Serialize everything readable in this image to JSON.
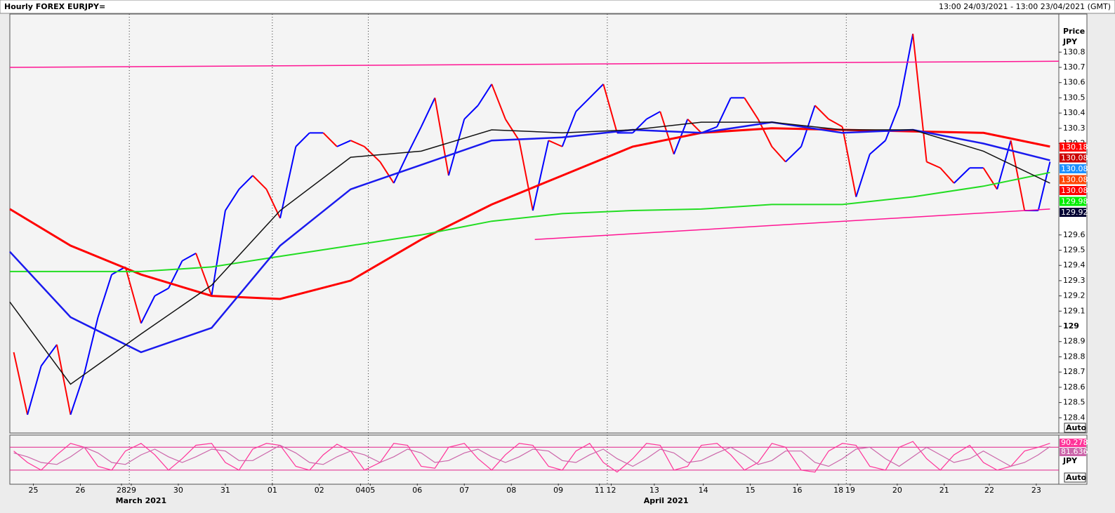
{
  "chart_data": [
    {
      "type": "line",
      "title": "Hourly FOREX EURJPY=",
      "subtitle": "13:00 24/03/2021 - 13:00 23/04/2021 (GMT)",
      "y_axis_label": "Price",
      "y_unit": "JPY",
      "y_scale_label": "Auto",
      "xlim": [
        0,
        535.5
      ],
      "ylim": [
        128.3,
        131.05
      ],
      "yticks": [
        128.4,
        128.5,
        128.6,
        128.7,
        128.8,
        128.9,
        129,
        129.1,
        129.2,
        129.3,
        129.4,
        129.5,
        129.6,
        130.2,
        130.3,
        130.4,
        130.5,
        130.6,
        130.7,
        130.8
      ],
      "xticks": [
        {
          "value": 12,
          "label": "25"
        },
        {
          "value": 36,
          "label": "26"
        },
        {
          "value": 57,
          "label": "28"
        },
        {
          "value": 62,
          "label": "29"
        },
        {
          "value": 86,
          "label": "30"
        },
        {
          "value": 110,
          "label": "31"
        },
        {
          "value": 134,
          "label": "01"
        },
        {
          "value": 158,
          "label": "02"
        },
        {
          "value": 179,
          "label": "04"
        },
        {
          "value": 184,
          "label": "05"
        },
        {
          "value": 208,
          "label": "06"
        },
        {
          "value": 232,
          "label": "07"
        },
        {
          "value": 256,
          "label": "08"
        },
        {
          "value": 280,
          "label": "09"
        },
        {
          "value": 301,
          "label": "11"
        },
        {
          "value": 307,
          "label": "12"
        },
        {
          "value": 329,
          "label": "13"
        },
        {
          "value": 354,
          "label": "14"
        },
        {
          "value": 378,
          "label": "15"
        },
        {
          "value": 402,
          "label": "16"
        },
        {
          "value": 423,
          "label": "18"
        },
        {
          "value": 429,
          "label": "19"
        },
        {
          "value": 453,
          "label": "20"
        },
        {
          "value": 477,
          "label": "21"
        },
        {
          "value": 500,
          "label": "22"
        },
        {
          "value": 524,
          "label": "23"
        }
      ],
      "month_labels": [
        {
          "value": 67,
          "label": "March 2021"
        },
        {
          "value": 335,
          "label": "April 2021"
        }
      ],
      "week_lines": [
        61,
        134,
        183,
        305,
        427
      ],
      "series": [
        {
          "up_color": "#0000ff",
          "down_color": "#ff0000",
          "x": [
            2,
            9,
            16,
            24,
            31,
            38,
            45,
            52,
            59,
            67,
            74,
            81,
            88,
            95,
            103,
            110,
            117,
            124,
            131,
            138,
            146,
            153,
            160,
            167,
            174,
            181,
            189,
            196,
            203,
            210,
            217,
            224,
            232,
            239,
            246,
            253,
            260,
            267,
            275,
            282,
            289,
            296,
            303,
            310,
            318,
            325,
            332,
            339,
            346,
            353,
            361,
            368,
            375,
            382,
            389,
            396,
            404,
            411,
            418,
            425,
            432,
            439,
            447,
            454,
            461,
            468,
            475,
            482,
            490,
            497,
            504,
            511,
            518,
            525,
            531
          ],
          "values": [
            128.83,
            128.42,
            128.74,
            128.88,
            128.42,
            128.69,
            129.06,
            129.34,
            129.39,
            129.02,
            129.2,
            129.25,
            129.43,
            129.48,
            129.2,
            129.76,
            129.9,
            129.99,
            129.9,
            129.71,
            130.18,
            130.27,
            130.27,
            130.18,
            130.22,
            130.18,
            130.08,
            129.94,
            130.13,
            130.31,
            130.5,
            129.99,
            130.36,
            130.45,
            130.59,
            130.36,
            130.22,
            129.76,
            130.22,
            130.18,
            130.41,
            130.5,
            130.59,
            130.27,
            130.27,
            130.36,
            130.41,
            130.13,
            130.36,
            130.27,
            130.31,
            130.5,
            130.5,
            130.36,
            130.18,
            130.08,
            130.18,
            130.45,
            130.36,
            130.31,
            129.85,
            130.13,
            130.22,
            130.45,
            130.92,
            130.08,
            130.04,
            129.94,
            130.04,
            130.04,
            129.9,
            130.22,
            129.76,
            129.76,
            130.08
          ]
        },
        {
          "color": "#ff0000",
          "width": 3,
          "x": [
            0,
            31,
            67,
            103,
            138,
            174,
            210,
            246,
            282,
            318,
            353,
            389,
            425,
            461,
            497,
            531
          ],
          "values": [
            129.77,
            129.53,
            129.34,
            129.2,
            129.18,
            129.3,
            129.57,
            129.8,
            129.99,
            130.18,
            130.27,
            130.3,
            130.29,
            130.28,
            130.27,
            130.18
          ]
        },
        {
          "color": "#22dd22",
          "width": 2,
          "x": [
            0,
            31,
            67,
            103,
            138,
            174,
            210,
            246,
            282,
            318,
            353,
            389,
            425,
            461,
            497,
            531
          ],
          "values": [
            129.36,
            129.36,
            129.36,
            129.39,
            129.46,
            129.53,
            129.6,
            129.69,
            129.74,
            129.76,
            129.77,
            129.8,
            129.8,
            129.85,
            129.92,
            130.01
          ]
        },
        {
          "color": "#1a1aee",
          "width": 2.5,
          "x": [
            0,
            31,
            67,
            103,
            138,
            174,
            210,
            246,
            282,
            318,
            353,
            389,
            425,
            461,
            497,
            531
          ],
          "values": [
            129.49,
            129.06,
            128.83,
            128.99,
            129.53,
            129.9,
            130.06,
            130.22,
            130.24,
            130.29,
            130.27,
            130.34,
            130.27,
            130.29,
            130.2,
            130.09
          ]
        },
        {
          "color": "#111111",
          "width": 1.5,
          "x": [
            0,
            31,
            67,
            103,
            138,
            174,
            210,
            246,
            282,
            318,
            353,
            389,
            425,
            461,
            497,
            531
          ],
          "values": [
            129.16,
            128.62,
            128.95,
            129.27,
            129.76,
            130.11,
            130.15,
            130.29,
            130.27,
            130.29,
            130.34,
            130.34,
            130.29,
            130.29,
            130.15,
            129.94
          ]
        },
        {
          "color": "#ff1493",
          "width": 1.5,
          "x": [
            0,
            535.5
          ],
          "values": [
            130.7,
            130.74
          ]
        },
        {
          "color": "#ff1493",
          "width": 1.5,
          "x": [
            268,
            531
          ],
          "values": [
            129.57,
            129.77
          ]
        }
      ],
      "price_labels": [
        {
          "value": 130.18,
          "label": "130.18",
          "color": "#ff0000"
        },
        {
          "value": 130.08,
          "label": "130.08",
          "color": "#cc0000"
        },
        {
          "value": 130.08,
          "label": "130.08",
          "color": "#1e90ff"
        },
        {
          "value": 130.08,
          "label": "130.08",
          "color": "#ff4500"
        },
        {
          "value": 130.08,
          "label": "130.08",
          "color": "#ff0000"
        },
        {
          "value": 129.98,
          "label": "129.98",
          "color": "#00ee00"
        },
        {
          "value": 129.92,
          "label": "129.92",
          "color": "#000033"
        }
      ]
    },
    {
      "type": "line",
      "y_unit": "JPY",
      "y_scale_label": "Auto",
      "ylim": [
        -15,
        108
      ],
      "levels": [
        80,
        20
      ],
      "series": [
        {
          "color": "#ff3399",
          "last_label": "90.278",
          "x": [
            2,
            9,
            16,
            24,
            31,
            38,
            45,
            52,
            59,
            67,
            74,
            81,
            88,
            95,
            103,
            110,
            117,
            124,
            131,
            138,
            146,
            153,
            160,
            167,
            174,
            181,
            189,
            196,
            203,
            210,
            217,
            224,
            232,
            239,
            246,
            253,
            260,
            267,
            275,
            282,
            289,
            296,
            303,
            310,
            318,
            325,
            332,
            339,
            346,
            353,
            361,
            368,
            375,
            382,
            389,
            396,
            404,
            411,
            418,
            425,
            432,
            439,
            447,
            454,
            461,
            468,
            475,
            482,
            490,
            497,
            504,
            511,
            518,
            525,
            531
          ],
          "values": [
            70,
            40,
            20,
            60,
            90,
            80,
            30,
            20,
            70,
            90,
            60,
            20,
            50,
            85,
            90,
            40,
            20,
            75,
            90,
            85,
            30,
            20,
            60,
            88,
            70,
            20,
            40,
            90,
            85,
            30,
            25,
            80,
            90,
            50,
            20,
            60,
            90,
            85,
            30,
            20,
            70,
            90,
            40,
            15,
            50,
            90,
            85,
            20,
            30,
            85,
            90,
            60,
            20,
            40,
            90,
            80,
            20,
            15,
            70,
            90,
            85,
            30,
            20,
            80,
            95,
            50,
            20,
            60,
            85,
            40,
            20,
            30,
            70,
            80,
            90.278
          ]
        },
        {
          "color": "#cc66aa",
          "last_label": "81.636",
          "x": [
            2,
            9,
            16,
            24,
            31,
            38,
            45,
            52,
            59,
            67,
            74,
            81,
            88,
            95,
            103,
            110,
            117,
            124,
            131,
            138,
            146,
            153,
            160,
            167,
            174,
            181,
            189,
            196,
            203,
            210,
            217,
            224,
            232,
            239,
            246,
            253,
            260,
            267,
            275,
            282,
            289,
            296,
            303,
            310,
            318,
            325,
            332,
            339,
            346,
            353,
            361,
            368,
            375,
            382,
            389,
            396,
            404,
            411,
            418,
            425,
            432,
            439,
            447,
            454,
            461,
            468,
            475,
            482,
            490,
            497,
            504,
            511,
            518,
            525,
            531
          ],
          "values": [
            65,
            55,
            40,
            35,
            55,
            80,
            65,
            40,
            35,
            60,
            75,
            55,
            40,
            55,
            75,
            70,
            45,
            45,
            65,
            85,
            65,
            40,
            35,
            55,
            70,
            60,
            40,
            55,
            75,
            65,
            40,
            45,
            65,
            75,
            55,
            40,
            55,
            75,
            70,
            45,
            40,
            60,
            75,
            50,
            30,
            50,
            75,
            65,
            40,
            45,
            65,
            80,
            60,
            35,
            45,
            70,
            70,
            40,
            30,
            50,
            75,
            80,
            50,
            30,
            55,
            80,
            60,
            40,
            50,
            70,
            50,
            30,
            40,
            60,
            81.636
          ]
        }
      ]
    }
  ]
}
